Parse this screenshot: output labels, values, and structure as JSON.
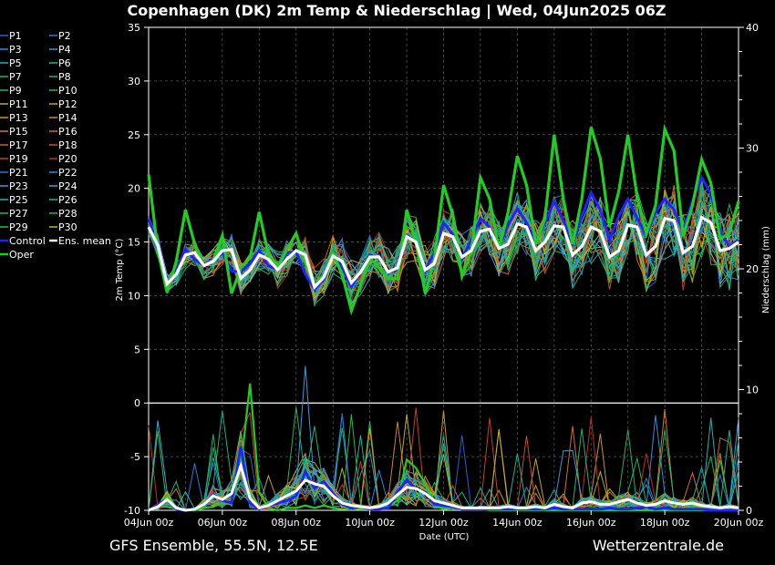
{
  "title": "Copenhagen  (DK)  2m Temp & Niederschlag | Wed, 04Jun2025 06Z",
  "footer_left": "GFS Ensemble, 55.5N, 12.5E",
  "footer_right": "Wetterzentrale.de",
  "chart_data": {
    "type": "line",
    "title": "Copenhagen  (DK)  2m Temp & Niederschlag | Wed, 04Jun2025 06Z",
    "xlabel": "Date (UTC)",
    "ylabel_left": "2m Temp (°C)",
    "ylabel_right": "Niederschlag (mm)",
    "xlim": [
      "04Jun 00z",
      "20Jun 00z"
    ],
    "ylim_left": [
      -10,
      35
    ],
    "ylim_right": [
      0,
      40
    ],
    "grid": true,
    "legend_placement": "left",
    "x_tick_labels": [
      "04Jun 00z",
      "06Jun 00z",
      "08Jun 00z",
      "10Jun 00z",
      "12Jun 00z",
      "14Jun 00z",
      "16Jun 00z",
      "18Jun 00z",
      "20Jun 00z"
    ],
    "y_left_ticks": [
      35,
      30,
      25,
      20,
      15,
      10,
      5,
      0,
      -5,
      -10
    ],
    "y_right_ticks": [
      40,
      30,
      20,
      10,
      0
    ],
    "legend": [
      "P1",
      "P2",
      "P3",
      "P4",
      "P5",
      "P6",
      "P7",
      "P8",
      "P9",
      "P10",
      "P11",
      "P12",
      "P13",
      "P14",
      "P15",
      "P16",
      "P17",
      "P18",
      "P19",
      "P20",
      "P21",
      "P22",
      "P23",
      "P24",
      "P25",
      "P26",
      "P27",
      "P28",
      "P29",
      "P30",
      "Control",
      "Ens. mean",
      "Oper"
    ],
    "member_colors": [
      "#2a5fd0",
      "#2c7bd6",
      "#2b8fd8",
      "#2a9bc8",
      "#1faab8",
      "#17b59e",
      "#12b486",
      "#16b46e",
      "#1db55a",
      "#2cb640",
      "#b8b020",
      "#c8a418",
      "#c89a1a",
      "#d08e1c",
      "#d0801e",
      "#d07020",
      "#cc6024",
      "#c85024",
      "#c44022",
      "#b83020",
      "#2a70d8",
      "#2a88dd",
      "#3a9ae0",
      "#38a8d8",
      "#22b4b0",
      "#1ab496",
      "#1ab47a",
      "#1eb462",
      "#36b845",
      "#c4b21c"
    ],
    "control_color": "#2222ff",
    "mean_color": "#ffffff",
    "oper_color": "#22cc22",
    "series": [
      {
        "name": "Oper",
        "x_hours": [
          0,
          6,
          12,
          18,
          24,
          30,
          36,
          42,
          48,
          54,
          60,
          66,
          72,
          78,
          84,
          90,
          96,
          102,
          108,
          114,
          120,
          126,
          132,
          138,
          144,
          150,
          156,
          162,
          168,
          174,
          180,
          186,
          192,
          198,
          204,
          210,
          216,
          222,
          228,
          234,
          240,
          246,
          252,
          258,
          264,
          270,
          276,
          282,
          288,
          294,
          300,
          306,
          312,
          318,
          324,
          330,
          336,
          342,
          348,
          354,
          360,
          366,
          372,
          378,
          384
        ],
        "values": [
          21.3,
          14.2,
          10.3,
          13.2,
          18.0,
          14.8,
          12.8,
          13.3,
          15.6,
          10.2,
          12.6,
          13.5,
          17.8,
          13.8,
          12.6,
          14.3,
          15.8,
          13.0,
          10.8,
          11.9,
          13.9,
          12.0,
          8.6,
          11.0,
          13.5,
          12.6,
          11.6,
          11.6,
          18.0,
          15.0,
          10.2,
          13.4,
          20.3,
          17.5,
          11.8,
          14.0,
          21.0,
          19.0,
          14.3,
          17.8,
          23.0,
          20.3,
          14.8,
          17.2,
          25.0,
          19.0,
          14.8,
          19.0,
          25.7,
          22.8,
          16.4,
          19.7,
          25.0,
          19.2,
          15.8,
          18.4,
          25.5,
          23.5,
          15.6,
          18.4,
          22.7,
          20.5,
          15.3,
          15.8,
          18.8
        ]
      },
      {
        "name": "Control",
        "x_hours": [
          0,
          6,
          12,
          18,
          24,
          30,
          36,
          42,
          48,
          54,
          60,
          66,
          72,
          78,
          84,
          90,
          96,
          102,
          108,
          114,
          120,
          126,
          132,
          138,
          144,
          150,
          156,
          162,
          168,
          174,
          180,
          186,
          192,
          198,
          204,
          210,
          216,
          222,
          228,
          234,
          240,
          246,
          252,
          258,
          264,
          270,
          276,
          282,
          288,
          294,
          300,
          306,
          312,
          318,
          324,
          330,
          336,
          342,
          348,
          354,
          360,
          366,
          372,
          378,
          384
        ],
        "values": [
          17.2,
          14.6,
          11.0,
          12.4,
          14.3,
          13.4,
          12.8,
          13.5,
          14.0,
          12.3,
          12.2,
          13.0,
          14.2,
          12.8,
          12.4,
          14.0,
          14.1,
          12.0,
          10.6,
          11.5,
          13.8,
          12.6,
          10.8,
          12.3,
          13.8,
          13.5,
          12.2,
          12.4,
          15.6,
          15.0,
          12.4,
          14.0,
          16.8,
          15.7,
          13.4,
          15.2,
          17.2,
          16.4,
          14.4,
          16.6,
          18.1,
          16.8,
          15.0,
          16.8,
          18.8,
          17.0,
          14.8,
          17.4,
          19.6,
          18.0,
          15.2,
          17.4,
          19.0,
          17.2,
          15.6,
          17.8,
          19.0,
          18.0,
          16.0,
          18.8,
          21.0,
          19.5,
          16.0,
          14.6,
          15.2
        ]
      },
      {
        "name": "Ens. mean",
        "x_hours": [
          0,
          6,
          12,
          18,
          24,
          30,
          36,
          42,
          48,
          54,
          60,
          66,
          72,
          78,
          84,
          90,
          96,
          102,
          108,
          114,
          120,
          126,
          132,
          138,
          144,
          150,
          156,
          162,
          168,
          174,
          180,
          186,
          192,
          198,
          204,
          210,
          216,
          222,
          228,
          234,
          240,
          246,
          252,
          258,
          264,
          270,
          276,
          282,
          288,
          294,
          300,
          306,
          312,
          318,
          324,
          330,
          336,
          342,
          348,
          354,
          360,
          366,
          372,
          378,
          384
        ],
        "values": [
          16.4,
          14.7,
          11.1,
          12.0,
          13.8,
          14.0,
          12.8,
          13.2,
          14.2,
          14.3,
          11.6,
          12.4,
          13.8,
          13.4,
          12.4,
          13.4,
          14.2,
          13.8,
          10.8,
          11.7,
          13.7,
          13.2,
          11.2,
          12.2,
          13.6,
          13.6,
          12.2,
          12.6,
          15.5,
          15.0,
          12.4,
          13.0,
          15.8,
          15.5,
          13.6,
          14.2,
          16.0,
          16.2,
          14.4,
          14.8,
          16.7,
          16.4,
          14.2,
          15.0,
          16.5,
          16.4,
          13.8,
          14.6,
          16.4,
          16.0,
          13.6,
          14.2,
          16.6,
          16.4,
          13.8,
          14.6,
          17.2,
          17.0,
          14.0,
          14.6,
          17.3,
          16.8,
          14.2,
          14.4,
          15.0
        ]
      }
    ],
    "precipitation_series": [
      {
        "name": "Oper",
        "values": [
          0,
          0.4,
          1.2,
          0.1,
          0,
          0,
          0.2,
          0.3,
          0.6,
          0.5,
          3.5,
          10.5,
          1.5,
          0.2,
          0,
          0.2,
          0.2,
          0.4,
          0.2,
          0.4,
          0.2,
          0.1,
          0.2,
          0.1,
          0.1,
          0.1,
          0.3,
          0.8,
          4.2,
          3.5,
          2.2,
          0.4,
          0.1,
          0.2,
          0.3,
          0.1,
          0.1,
          0,
          0,
          0,
          0,
          0,
          0,
          0,
          0,
          0,
          0,
          0,
          0,
          0,
          0,
          0,
          0,
          0,
          0,
          0,
          0,
          0,
          0,
          0,
          0,
          0,
          0,
          0,
          0
        ]
      },
      {
        "name": "Control",
        "values": [
          0,
          0.5,
          0.9,
          0.1,
          0,
          0.1,
          0.5,
          1.3,
          0.8,
          0.6,
          5.3,
          0.6,
          0.1,
          0.4,
          0.6,
          0.8,
          1.2,
          3.2,
          1.8,
          2.4,
          1.4,
          0.5,
          0.2,
          0.3,
          0.1,
          0.1,
          0.2,
          1.5,
          2.5,
          1.8,
          1.5,
          0.5,
          0.4,
          0.3,
          0.1,
          0.1,
          0.1,
          0.1,
          0.1,
          0.1,
          0.1,
          0.1,
          0.1,
          0.1,
          0.2,
          0.1,
          0.1,
          0.1,
          0.1,
          0.1,
          0.2,
          0.1,
          0.1,
          0.2,
          0.3,
          0.1,
          0.2,
          0.1,
          0.1,
          0.1,
          0.1,
          0,
          0,
          0,
          0
        ]
      },
      {
        "name": "Ens. mean",
        "values": [
          0,
          0.3,
          0.9,
          0.2,
          0,
          0.1,
          0.5,
          1.2,
          0.9,
          1.4,
          3.7,
          1.0,
          0.2,
          0.4,
          0.8,
          1.2,
          1.6,
          2.5,
          2.2,
          2.0,
          1.2,
          0.6,
          0.4,
          0.3,
          0.2,
          0.3,
          0.6,
          1.3,
          1.9,
          1.8,
          1.4,
          0.8,
          0.6,
          0.4,
          0.2,
          0.2,
          0.2,
          0.2,
          0.2,
          0.3,
          0.2,
          0.2,
          0.3,
          0.2,
          0.5,
          0.3,
          0.2,
          0.6,
          0.7,
          0.5,
          0.5,
          0.7,
          0.9,
          0.6,
          0.4,
          0.5,
          0.8,
          0.6,
          0.5,
          0.6,
          0.4,
          0.3,
          0.2,
          0.3,
          0.2
        ]
      }
    ]
  }
}
